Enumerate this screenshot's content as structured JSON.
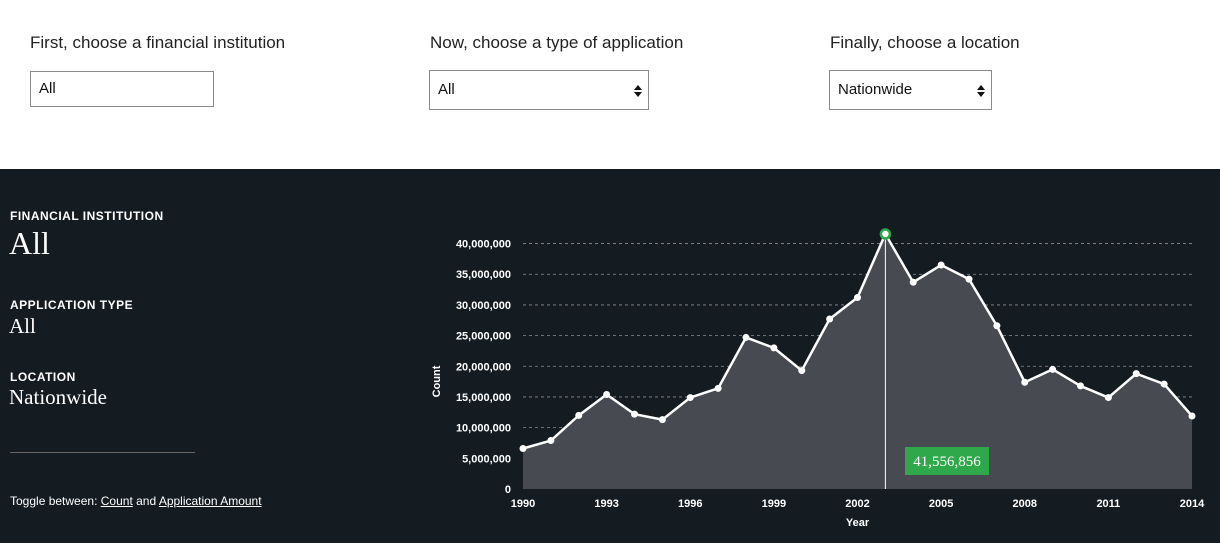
{
  "filters": {
    "institution": {
      "label": "First, choose a financial institution",
      "value": "All"
    },
    "application_type": {
      "label": "Now, choose a type of application",
      "value": "All"
    },
    "location": {
      "label": "Finally, choose a location",
      "value": "Nationwide"
    }
  },
  "summary": {
    "institution_label": "FINANCIAL INSTITUTION",
    "institution_value": "All",
    "application_type_label": "APPLICATION TYPE",
    "application_type_value": "All",
    "location_label": "LOCATION",
    "location_value": "Nationwide",
    "toggle_prefix": "Toggle between:",
    "toggle_count": "Count",
    "toggle_and": "and",
    "toggle_amount": "Application Amount"
  },
  "colors": {
    "panel_bg": "#141b21",
    "area_fill": "#474b51",
    "line": "#ffffff",
    "highlight": "#2ea84a"
  },
  "chart_data": {
    "type": "area",
    "xlabel": "Year",
    "ylabel": "Count",
    "x_ticks": [
      1990,
      1993,
      1996,
      1999,
      2002,
      2005,
      2008,
      2011,
      2014
    ],
    "y_ticks": [
      0,
      5000000,
      10000000,
      15000000,
      20000000,
      25000000,
      30000000,
      35000000,
      40000000
    ],
    "y_tick_labels": [
      "0",
      "5,000,000",
      "10,000,000",
      "15,000,000",
      "20,000,000",
      "25,000,000",
      "30,000,000",
      "35,000,000",
      "40,000,000"
    ],
    "xlim": [
      1990,
      2014
    ],
    "ylim": [
      0,
      41556856
    ],
    "grid": true,
    "x": [
      1990,
      1991,
      1992,
      1993,
      1994,
      1995,
      1996,
      1997,
      1998,
      1999,
      2000,
      2001,
      2002,
      2003,
      2004,
      2005,
      2006,
      2007,
      2008,
      2009,
      2010,
      2011,
      2012,
      2013,
      2014
    ],
    "series": [
      {
        "values": [
          6600000,
          7900000,
          12000000,
          15400000,
          12200000,
          11300000,
          14900000,
          16400000,
          24700000,
          23000000,
          19300000,
          27700000,
          31200000,
          41556856,
          33700000,
          36500000,
          34200000,
          26600000,
          17400000,
          19500000,
          16800000,
          14900000,
          18800000,
          17100000,
          11900000
        ]
      }
    ],
    "highlight": {
      "x": 2003,
      "value": 41556856,
      "label": "41,556,856"
    }
  }
}
